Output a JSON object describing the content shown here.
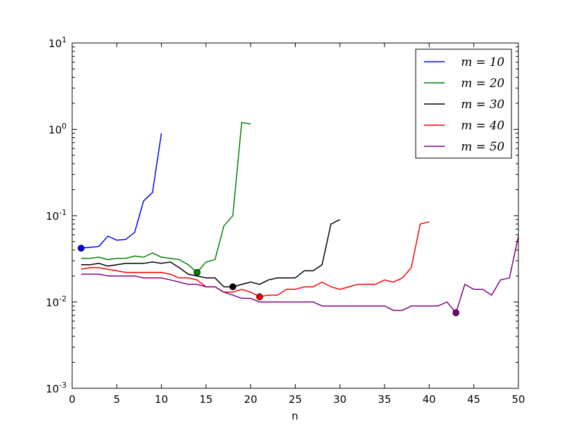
{
  "chart_data": {
    "type": "line",
    "title": "",
    "xlabel": "n",
    "ylabel": "",
    "xlim": [
      0,
      50
    ],
    "ylim": [
      0.001,
      10
    ],
    "yscale": "log",
    "grid": false,
    "legend_position": "top-right",
    "x_ticks": [
      0,
      5,
      10,
      15,
      20,
      25,
      30,
      35,
      40,
      45,
      50
    ],
    "y_ticks": [
      {
        "value": 0.001,
        "base": "10",
        "exp": "-3"
      },
      {
        "value": 0.01,
        "base": "10",
        "exp": "-2"
      },
      {
        "value": 0.1,
        "base": "10",
        "exp": "-1"
      },
      {
        "value": 1,
        "base": "10",
        "exp": "0"
      },
      {
        "value": 10,
        "base": "10",
        "exp": "1"
      }
    ],
    "series": [
      {
        "name": "m = 10",
        "color": "#0000ff",
        "x": [
          1,
          2,
          3,
          4,
          5,
          6,
          7,
          8,
          9,
          10
        ],
        "y": [
          0.042,
          0.043,
          0.044,
          0.058,
          0.052,
          0.053,
          0.064,
          0.148,
          0.185,
          0.9
        ],
        "marker": {
          "x": 1,
          "y": 0.042
        }
      },
      {
        "name": "m = 20",
        "color": "#008000",
        "x": [
          1,
          2,
          3,
          4,
          5,
          6,
          7,
          8,
          9,
          10,
          11,
          12,
          13,
          14,
          15,
          16,
          17,
          18,
          19,
          20
        ],
        "y": [
          0.032,
          0.032,
          0.033,
          0.031,
          0.032,
          0.032,
          0.034,
          0.033,
          0.037,
          0.033,
          0.032,
          0.031,
          0.027,
          0.022,
          0.029,
          0.031,
          0.076,
          0.1,
          1.2,
          1.15
        ],
        "marker": {
          "x": 14,
          "y": 0.022
        }
      },
      {
        "name": "m = 30",
        "color": "#000000",
        "x": [
          1,
          2,
          3,
          4,
          5,
          6,
          7,
          8,
          9,
          10,
          11,
          12,
          13,
          14,
          15,
          16,
          17,
          18,
          19,
          20,
          21,
          22,
          23,
          24,
          25,
          26,
          27,
          28,
          29,
          30
        ],
        "y": [
          0.027,
          0.027,
          0.028,
          0.026,
          0.027,
          0.028,
          0.028,
          0.028,
          0.029,
          0.028,
          0.029,
          0.025,
          0.021,
          0.02,
          0.019,
          0.019,
          0.015,
          0.015,
          0.016,
          0.017,
          0.016,
          0.018,
          0.019,
          0.019,
          0.019,
          0.023,
          0.023,
          0.027,
          0.08,
          0.09
        ],
        "marker": {
          "x": 18,
          "y": 0.015
        }
      },
      {
        "name": "m = 40",
        "color": "#ff0000",
        "x": [
          1,
          2,
          3,
          4,
          5,
          6,
          7,
          8,
          9,
          10,
          11,
          12,
          13,
          14,
          15,
          16,
          17,
          18,
          19,
          20,
          21,
          22,
          23,
          24,
          25,
          26,
          27,
          28,
          29,
          30,
          31,
          32,
          33,
          34,
          35,
          36,
          37,
          38,
          39,
          40
        ],
        "y": [
          0.024,
          0.025,
          0.025,
          0.024,
          0.023,
          0.022,
          0.022,
          0.022,
          0.022,
          0.022,
          0.021,
          0.019,
          0.019,
          0.018,
          0.015,
          0.015,
          0.013,
          0.013,
          0.014,
          0.013,
          0.0115,
          0.012,
          0.012,
          0.014,
          0.014,
          0.015,
          0.015,
          0.017,
          0.015,
          0.014,
          0.015,
          0.016,
          0.016,
          0.016,
          0.018,
          0.017,
          0.019,
          0.025,
          0.08,
          0.085
        ],
        "marker": {
          "x": 21,
          "y": 0.0115
        }
      },
      {
        "name": "m = 50",
        "color": "#800080",
        "x": [
          1,
          2,
          3,
          4,
          5,
          6,
          7,
          8,
          9,
          10,
          11,
          12,
          13,
          14,
          15,
          16,
          17,
          18,
          19,
          20,
          21,
          22,
          23,
          24,
          25,
          26,
          27,
          28,
          29,
          30,
          31,
          32,
          33,
          34,
          35,
          36,
          37,
          38,
          39,
          40,
          41,
          42,
          43,
          44,
          45,
          46,
          47,
          48,
          49,
          50
        ],
        "y": [
          0.021,
          0.021,
          0.021,
          0.02,
          0.02,
          0.02,
          0.02,
          0.019,
          0.019,
          0.019,
          0.018,
          0.017,
          0.016,
          0.016,
          0.015,
          0.015,
          0.013,
          0.012,
          0.011,
          0.011,
          0.01,
          0.01,
          0.01,
          0.01,
          0.01,
          0.01,
          0.01,
          0.009,
          0.009,
          0.009,
          0.009,
          0.009,
          0.009,
          0.009,
          0.009,
          0.008,
          0.008,
          0.009,
          0.009,
          0.009,
          0.009,
          0.01,
          0.0075,
          0.016,
          0.014,
          0.014,
          0.012,
          0.018,
          0.019,
          0.058
        ],
        "marker": {
          "x": 43,
          "y": 0.0075
        }
      }
    ]
  }
}
